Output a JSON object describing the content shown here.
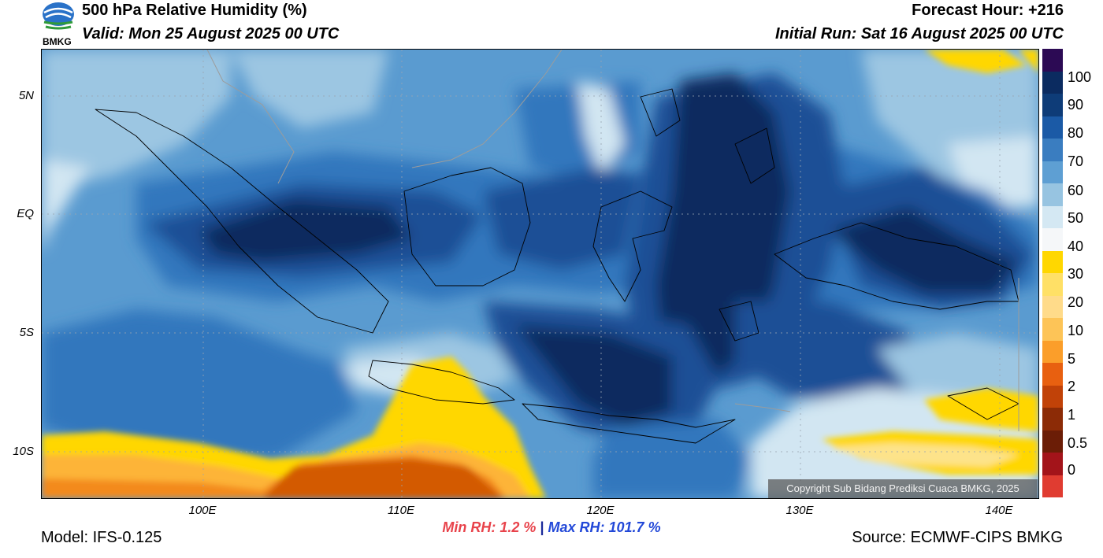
{
  "header": {
    "title": "500 hPa Relative Humidity (%)",
    "valid": "Valid: Mon 25 August 2025 00 UTC",
    "forecast_hour": "Forecast Hour: +216",
    "initial_run": "Initial Run: Sat 16 August 2025 00 UTC",
    "logo_text": "BMKG"
  },
  "map": {
    "lat_labels": [
      "5N",
      "EQ",
      "5S",
      "10S"
    ],
    "lon_labels": [
      "100E",
      "110E",
      "120E",
      "130E",
      "140E"
    ],
    "copyright": "Copyright Sub Bidang Prediksi Cuaca BMKG, 2025",
    "field_colors": {
      "very_humid": "#0a2a5e",
      "humid": "#1a4f96",
      "moist": "#3377bd",
      "medium": "#5a9bd0",
      "light": "#9cc6e2",
      "pale": "#d2e6f2",
      "dry": "#ffd700",
      "drier": "#fdb437",
      "very_dry": "#d35a06"
    }
  },
  "colorbar": {
    "labels": [
      "100",
      "90",
      "80",
      "70",
      "60",
      "50",
      "40",
      "30",
      "20",
      "10",
      "5",
      "2",
      "1",
      "0.5",
      "0"
    ],
    "colors_top_to_bottom": [
      "#2c0a54",
      "#0b2b60",
      "#0e3c78",
      "#1b5aa6",
      "#3a7dc0",
      "#5e9fd3",
      "#97c4e1",
      "#d4e8f3",
      "#f5f7f9",
      "#ffd700",
      "#ffe066",
      "#ffdb8a",
      "#fdc457",
      "#fb9e2a",
      "#e86010",
      "#c14208",
      "#8c2b06",
      "#6b1d06",
      "#a3141a",
      "#e03c31"
    ]
  },
  "stats": {
    "min_rh": "Min RH:   1.2 %",
    "separator": "|",
    "max_rh": "Max RH: 101.7 %"
  },
  "footer": {
    "model": "Model: IFS-0.125",
    "source": "Source: ECMWF-CIPS BMKG"
  }
}
